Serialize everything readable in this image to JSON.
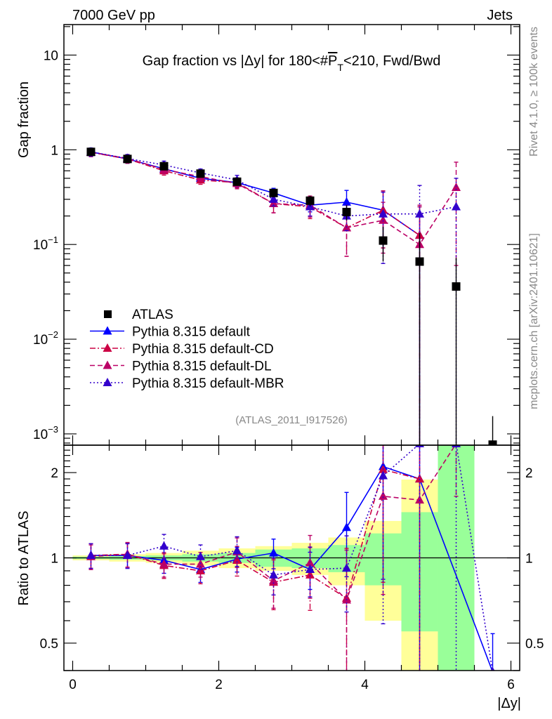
{
  "header": {
    "left": "7000 GeV pp",
    "right": "Jets"
  },
  "side": {
    "rivet": "Rivet 4.1.0, ≥ 100k events",
    "mcplots": "mcplots.cern.ch [arXiv:2401.10621]"
  },
  "analysis_id": "(ATLAS_2011_I917526)",
  "chart_data": {
    "type": "scatter",
    "title": "Gap fraction vs |Δy| for 180<#P̅T<210, Fwd/Bwd",
    "title_parts": {
      "pre": "Gap fraction vs |Δy| for 180<#",
      "p": "P",
      "t": "T",
      "post": "<210, Fwd/Bwd"
    },
    "xlabel": "|Δy|",
    "ylabel": "Gap fraction",
    "ratio_ylabel": "Ratio to ATLAS",
    "xlim": [
      -0.12,
      6.12
    ],
    "ylim": [
      0.00076,
      21
    ],
    "yscale": "log",
    "ratio_ylim": [
      0.4,
      2.5
    ],
    "ratio_yscale": "log",
    "legend_position": "bottom-left",
    "x_ticks": [
      "0",
      "2",
      "4",
      "6"
    ],
    "x_tick_values": [
      0,
      2,
      4,
      6
    ],
    "y_ticks": [
      {
        "base": "10",
        "exp": ""
      },
      {
        "base": "1",
        "exp": ""
      },
      {
        "base": "10",
        "exp": "−1"
      },
      {
        "base": "10",
        "exp": "−2"
      },
      {
        "base": "10",
        "exp": "−3"
      }
    ],
    "y_tick_values": [
      10,
      1,
      0.1,
      0.01,
      0.001
    ],
    "ratio_ticks": [
      "2",
      "1",
      "0.5"
    ],
    "ratio_tick_values": [
      2,
      1,
      0.5
    ],
    "x": [
      0.25,
      0.75,
      1.25,
      1.75,
      2.25,
      2.75,
      3.25,
      3.75,
      4.25,
      4.75,
      5.25,
      5.75
    ],
    "bin_edges": [
      0,
      0.5,
      1,
      1.5,
      2,
      2.5,
      3,
      3.5,
      4,
      4.5,
      5,
      5.5,
      6
    ],
    "data": {
      "name": "ATLAS",
      "color": "#000000",
      "values": [
        0.95,
        0.8,
        0.67,
        0.56,
        0.46,
        0.35,
        0.29,
        0.22,
        0.11,
        0.066,
        0.036,
        0.00077
      ],
      "rel_err": [
        0.02,
        0.03,
        0.04,
        0.06,
        0.08,
        0.1,
        0.13,
        0.18,
        0.4,
        1.0,
        1.0,
        1.0
      ],
      "band_total": [
        [
          0.98,
          1.02
        ],
        [
          0.97,
          1.03
        ],
        [
          0.96,
          1.04
        ],
        [
          0.94,
          1.06
        ],
        [
          0.92,
          1.08
        ],
        [
          0.9,
          1.1
        ],
        [
          0.87,
          1.13
        ],
        [
          0.8,
          1.18
        ],
        [
          0.6,
          1.35
        ],
        [
          0.01,
          1.89
        ],
        [
          0.01,
          100
        ],
        null
      ],
      "band_stat": [
        [
          0.99,
          1.01
        ],
        [
          0.985,
          1.015
        ],
        [
          0.98,
          1.02
        ],
        [
          0.97,
          1.03
        ],
        [
          0.96,
          1.04
        ],
        [
          0.93,
          1.07
        ],
        [
          0.92,
          1.08
        ],
        [
          0.89,
          1.11
        ],
        [
          0.8,
          1.22
        ],
        [
          0.55,
          1.45
        ],
        [
          0.01,
          100
        ],
        null
      ],
      "band_total_color": "#ffff99",
      "band_stat_color": "#99ff99"
    },
    "series": [
      {
        "name": "Pythia 8.315 default",
        "color": "#0000ff",
        "dash": "",
        "values": [
          0.95,
          0.8,
          0.63,
          0.5,
          0.45,
          0.35,
          0.26,
          0.28,
          0.23,
          0.125,
          null,
          null
        ],
        "ratio": [
          1.02,
          1.02,
          0.98,
          0.91,
          0.99,
          1.04,
          0.91,
          1.28,
          2.1,
          1.9,
          null,
          0.27
        ],
        "rel_err": [
          0.1,
          0.1,
          0.1,
          0.1,
          0.1,
          0.12,
          0.15,
          0.33,
          0.6,
          1.0,
          null,
          1.0
        ]
      },
      {
        "name": "Pythia 8.315 default-CD",
        "color": "#cc0044",
        "dash": "8,3,2,3",
        "values": [
          0.94,
          0.8,
          0.6,
          0.48,
          0.45,
          0.27,
          0.25,
          0.15,
          0.23,
          0.125,
          null,
          null
        ],
        "ratio": [
          1.02,
          1.03,
          0.94,
          0.9,
          0.98,
          0.82,
          0.87,
          0.72,
          2.05,
          1.9,
          null,
          null
        ],
        "rel_err": [
          0.1,
          0.1,
          0.1,
          0.1,
          0.12,
          0.2,
          0.25,
          0.5,
          0.6,
          1.0,
          null,
          null
        ]
      },
      {
        "name": "Pythia 8.315 default-DL",
        "color": "#bb0066",
        "dash": "7,4",
        "values": [
          0.94,
          0.81,
          0.62,
          0.52,
          0.44,
          0.27,
          0.26,
          0.15,
          0.18,
          0.1,
          0.4,
          null
        ],
        "ratio": [
          1.01,
          1.03,
          0.95,
          0.95,
          1.05,
          0.83,
          0.96,
          0.71,
          1.65,
          1.6,
          11,
          null
        ],
        "rel_err": [
          0.1,
          0.1,
          0.1,
          0.1,
          0.12,
          0.2,
          0.25,
          0.5,
          0.55,
          1.6,
          0.85,
          null
        ]
      },
      {
        "name": "Pythia 8.315 default-MBR",
        "color": "#3300cc",
        "dash": "2,3",
        "values": [
          0.95,
          0.81,
          0.69,
          0.57,
          0.48,
          0.3,
          0.25,
          0.2,
          0.21,
          0.21,
          0.25,
          null
        ],
        "ratio": [
          1.02,
          1.02,
          1.1,
          1.01,
          1.06,
          0.87,
          0.91,
          0.92,
          1.95,
          3.2,
          6.9,
          0.2
        ],
        "rel_err": [
          0.1,
          0.1,
          0.1,
          0.1,
          0.12,
          0.15,
          0.2,
          0.3,
          0.7,
          1.0,
          1.0,
          1.0
        ]
      }
    ]
  }
}
